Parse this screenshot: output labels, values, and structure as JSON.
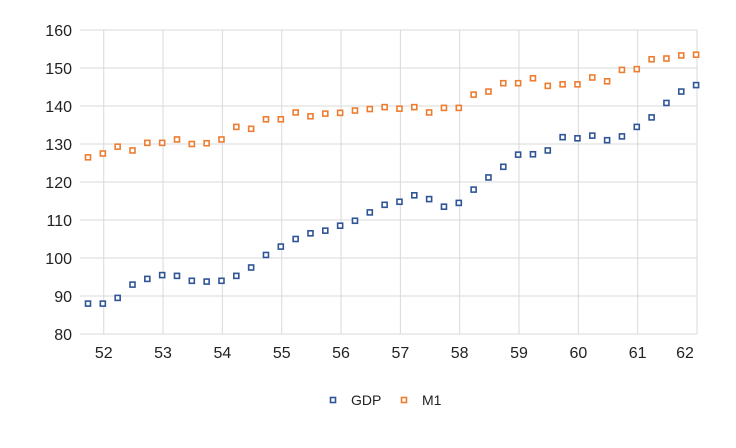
{
  "chart_data": {
    "type": "scatter",
    "title": "",
    "xlabel": "",
    "ylabel": "",
    "xlim": [
      51.6,
      62
    ],
    "ylim": [
      80,
      160
    ],
    "yticks": [
      80,
      90,
      100,
      110,
      120,
      130,
      140,
      150,
      160
    ],
    "xticks": [
      "52",
      "53",
      "54",
      "55",
      "56",
      "57",
      "58",
      "59",
      "60",
      "61",
      "62"
    ],
    "grid": true,
    "legend": "bottom",
    "x": [
      51.6,
      51.85,
      52.1,
      52.35,
      52.6,
      52.85,
      53.1,
      53.35,
      53.6,
      53.85,
      54.1,
      54.35,
      54.6,
      54.85,
      55.1,
      55.35,
      55.6,
      55.85,
      56.1,
      56.35,
      56.6,
      56.85,
      57.1,
      57.35,
      57.6,
      57.85,
      58.1,
      58.35,
      58.6,
      58.85,
      59.1,
      59.35,
      59.6,
      59.85,
      60.1,
      60.35,
      60.6,
      60.85,
      61.1,
      61.35,
      61.6,
      61.85
    ],
    "series": [
      {
        "name": "GDP",
        "color": "#2f5597",
        "values": [
          88.0,
          88.0,
          89.5,
          93.0,
          94.5,
          95.5,
          95.3,
          94.0,
          93.8,
          94.0,
          95.3,
          97.5,
          100.8,
          103.0,
          105.0,
          106.5,
          107.2,
          108.5,
          109.8,
          112.0,
          114.0,
          114.8,
          116.5,
          115.5,
          113.5,
          114.5,
          118.0,
          121.2,
          124.0,
          127.2,
          127.3,
          128.3,
          131.8,
          131.5,
          132.2,
          131.0,
          132.0,
          134.5,
          137.0,
          140.8,
          143.8,
          145.5
        ]
      },
      {
        "name": "M1",
        "color": "#ed7d31",
        "values": [
          126.5,
          127.5,
          129.3,
          128.3,
          130.3,
          130.3,
          131.2,
          130.0,
          130.2,
          131.2,
          134.5,
          134.0,
          136.5,
          136.5,
          138.3,
          137.3,
          138.0,
          138.2,
          138.8,
          139.2,
          139.7,
          139.3,
          139.7,
          138.3,
          139.5,
          139.5,
          143.0,
          143.8,
          146.0,
          146.0,
          147.3,
          145.3,
          145.7,
          145.7,
          147.5,
          146.5,
          149.5,
          149.7,
          152.3,
          152.5,
          153.3,
          153.5
        ]
      }
    ]
  }
}
